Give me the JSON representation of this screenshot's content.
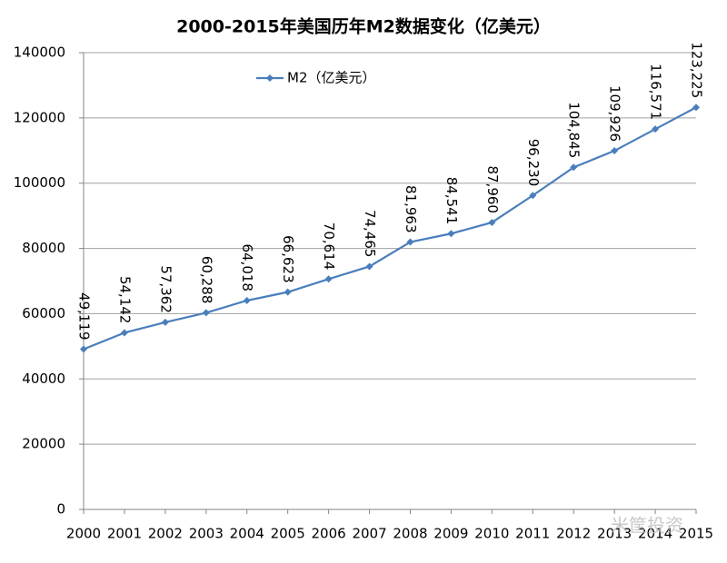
{
  "chart_data": {
    "type": "line",
    "title": "2000-2015年美国历年M2数据变化（亿美元）",
    "categories": [
      "2000",
      "2001",
      "2002",
      "2003",
      "2004",
      "2005",
      "2006",
      "2007",
      "2008",
      "2009",
      "2010",
      "2011",
      "2012",
      "2013",
      "2014",
      "2015"
    ],
    "series": [
      {
        "name": "M2（亿美元）",
        "color": "#4a7ebb",
        "values": [
          49119,
          54142,
          57362,
          60288,
          64018,
          66623,
          70614,
          74465,
          81963,
          84541,
          87960,
          96230,
          104845,
          109926,
          116571,
          123225
        ],
        "value_labels": [
          "49,119",
          "54,142",
          "57,362",
          "60,288",
          "64,018",
          "66,623",
          "70,614",
          "74,465",
          "81,963",
          "84,541",
          "87,960",
          "96,230",
          "104,845",
          "109,926",
          "116,571",
          "123,225"
        ]
      }
    ],
    "ylim": [
      0,
      140000
    ],
    "yticks": [
      0,
      20000,
      40000,
      60000,
      80000,
      100000,
      120000,
      140000
    ],
    "grid": true,
    "legend": "top-left",
    "watermark": "米筐投资"
  }
}
